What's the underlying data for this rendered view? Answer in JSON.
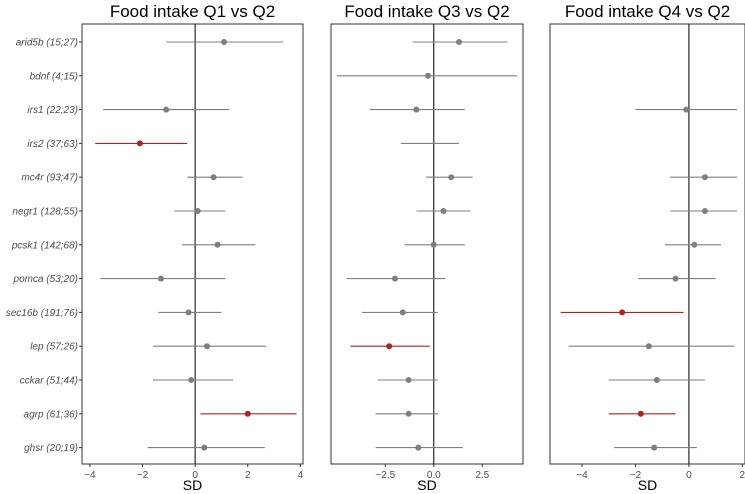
{
  "chart_data": {
    "type": "forest",
    "xlabel": "SD",
    "colors": {
      "normal": "#7f7f7f",
      "significant": "#b22222"
    },
    "genes": [
      "arid5b (15;27)",
      "bdnf (4;15)",
      "irs1 (22;23)",
      "irs2 (37;63)",
      "mc4r (93;47)",
      "negr1 (128;55)",
      "pcsk1 (142;68)",
      "pomca (53;20)",
      "sec16b (191;76)",
      "lep (57;26)",
      "cckar (51;44)",
      "agrp (61;36)",
      "ghsr (20;19)"
    ],
    "panels": [
      {
        "title": "Food intake Q1 vs Q2",
        "xlim": [
          -4.3,
          4.1
        ],
        "ticks": [
          -4,
          -2,
          0,
          2,
          4
        ],
        "tick_labels": [
          "−4",
          "−2",
          "0",
          "2",
          "4"
        ],
        "estimates": [
          1.1,
          null,
          -1.1,
          -2.1,
          0.7,
          0.1,
          0.85,
          -1.3,
          -0.25,
          0.45,
          -0.15,
          2.0,
          0.35
        ],
        "lower": [
          -1.1,
          null,
          -3.5,
          -3.8,
          -0.3,
          -0.8,
          -0.5,
          -3.6,
          -1.4,
          -1.6,
          -1.6,
          0.2,
          -1.8
        ],
        "upper": [
          3.35,
          null,
          1.3,
          -0.3,
          1.8,
          1.15,
          2.3,
          1.15,
          1.0,
          2.7,
          1.45,
          3.85,
          2.65
        ],
        "significant": [
          false,
          false,
          false,
          true,
          false,
          false,
          false,
          false,
          false,
          false,
          false,
          true,
          false
        ]
      },
      {
        "title": "Food intake Q3 vs Q2",
        "xlim": [
          -5.3,
          4.6
        ],
        "ticks": [
          -2.5,
          0,
          2.5
        ],
        "tick_labels": [
          "−2.5",
          "0.0",
          "2.5"
        ],
        "estimates": [
          1.3,
          -0.3,
          -0.9,
          null,
          0.9,
          0.5,
          0.0,
          -2.0,
          -1.6,
          -2.3,
          -1.3,
          -1.3,
          -0.8
        ],
        "lower": [
          -1.1,
          -5.0,
          -3.3,
          -1.7,
          -0.4,
          -0.9,
          -1.5,
          -4.5,
          -3.7,
          -4.3,
          -2.9,
          -3.0,
          -3.0
        ],
        "upper": [
          3.8,
          4.3,
          1.6,
          1.3,
          2.0,
          1.9,
          1.6,
          0.6,
          0.2,
          -0.2,
          0.2,
          0.2,
          1.5
        ],
        "significant": [
          false,
          false,
          false,
          false,
          false,
          false,
          false,
          false,
          false,
          true,
          false,
          false,
          false
        ]
      },
      {
        "title": "Food intake Q4 vs Q2",
        "xlim": [
          -5.2,
          2.1
        ],
        "ticks": [
          -4,
          -2,
          0,
          2
        ],
        "tick_labels": [
          "−4",
          "−2",
          "0",
          "2"
        ],
        "estimates": [
          null,
          null,
          -0.1,
          null,
          0.6,
          0.6,
          0.2,
          -0.5,
          -2.5,
          -1.5,
          -1.2,
          -1.8,
          -1.3
        ],
        "lower": [
          null,
          null,
          -2.0,
          null,
          -0.7,
          -0.7,
          -0.9,
          -1.9,
          -4.8,
          -4.5,
          -3.0,
          -3.0,
          -2.8
        ],
        "upper": [
          null,
          null,
          1.8,
          null,
          1.8,
          1.8,
          1.2,
          1.0,
          -0.2,
          1.7,
          0.6,
          -0.5,
          0.3
        ],
        "significant": [
          false,
          false,
          false,
          false,
          false,
          false,
          false,
          false,
          true,
          false,
          false,
          true,
          false
        ]
      }
    ]
  }
}
